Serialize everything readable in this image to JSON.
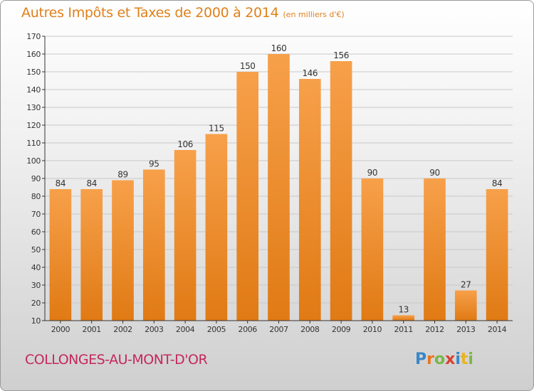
{
  "title": "Autres Impôts et Taxes de 2000 à 2014",
  "unit": "(en milliers d'€)",
  "city": "COLLONGES-AU-MONT-D'OR",
  "logo": {
    "text": "Proxiti",
    "letters": [
      {
        "ch": "P",
        "color": "#3a86c8"
      },
      {
        "ch": "r",
        "color": "#e8761d"
      },
      {
        "ch": "o",
        "color": "#7ab648"
      },
      {
        "ch": "x",
        "color": "#d93f2e"
      },
      {
        "ch": "i",
        "color": "#3a86c8"
      },
      {
        "ch": "t",
        "color": "#e8b31d"
      },
      {
        "ch": "i",
        "color": "#7ab648"
      }
    ]
  },
  "colors": {
    "bar_light": "#f7a04a",
    "bar_dark": "#e07a14",
    "axis": "#333333",
    "grid": "#c8c8c8"
  },
  "chart_data": {
    "type": "bar",
    "categories": [
      "2000",
      "2001",
      "2002",
      "2003",
      "2004",
      "2005",
      "2006",
      "2007",
      "2008",
      "2009",
      "2010",
      "2011",
      "2012",
      "2013",
      "2014"
    ],
    "values": [
      84,
      84,
      89,
      95,
      106,
      115,
      150,
      160,
      146,
      156,
      90,
      13,
      90,
      27,
      84
    ],
    "ylim": [
      10,
      170
    ],
    "yticks": [
      10,
      20,
      30,
      40,
      50,
      60,
      70,
      80,
      90,
      100,
      110,
      120,
      130,
      140,
      150,
      160,
      170
    ],
    "grid": true
  }
}
